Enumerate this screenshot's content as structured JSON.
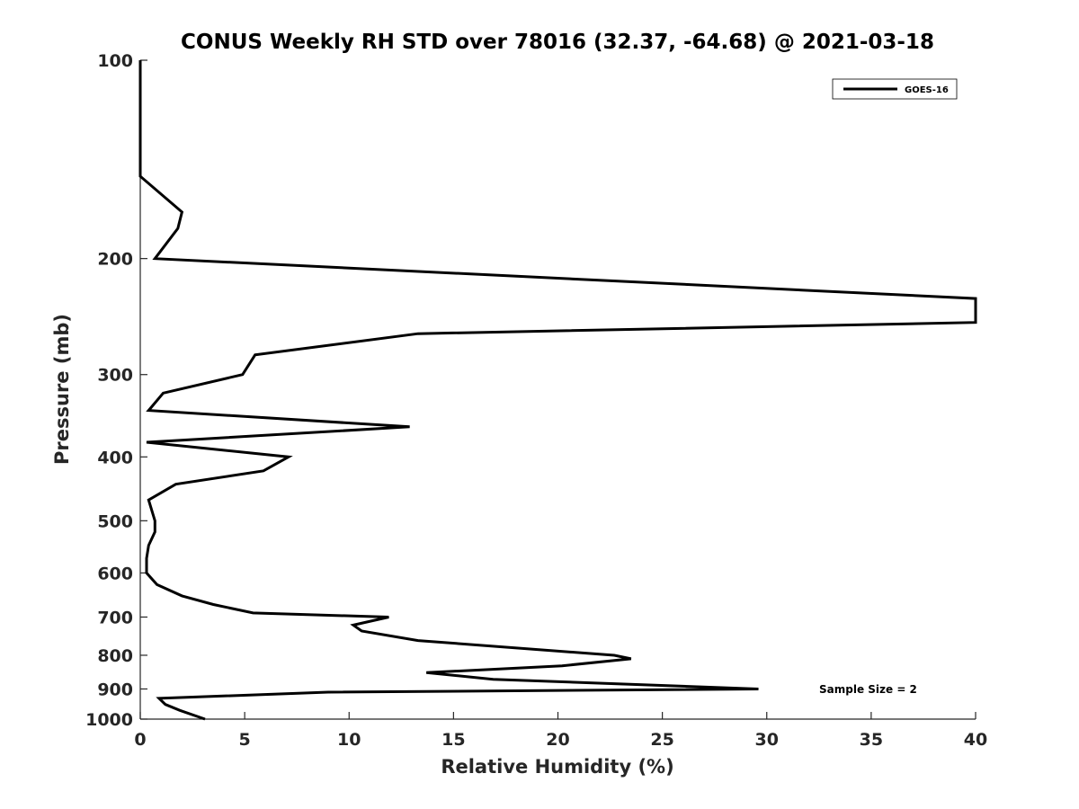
{
  "chart_data": {
    "type": "line",
    "title": "CONUS Weekly RH STD over 78016 (32.37, -64.68) @ 2021-03-18",
    "xlabel": "Relative Humidity (%)",
    "ylabel": "Pressure (mb)",
    "xlim": [
      0,
      40
    ],
    "ylim": [
      100,
      1000
    ],
    "yscale": "log",
    "y_reversed": true,
    "grid": false,
    "legend_position": "top-right",
    "x_ticks": [
      "0",
      "5",
      "10",
      "15",
      "20",
      "25",
      "30",
      "35",
      "40"
    ],
    "y_ticks": [
      "100",
      "200",
      "300",
      "400",
      "500",
      "600",
      "700",
      "800",
      "900",
      "1000"
    ],
    "series": [
      {
        "name": "GOES-16",
        "color": "#000000",
        "points": [
          [
            0.0,
            100
          ],
          [
            0.0,
            125
          ],
          [
            0.0,
            150
          ],
          [
            2.0,
            170
          ],
          [
            1.8,
            180
          ],
          [
            0.7,
            200
          ],
          [
            40.0,
            230
          ],
          [
            40.0,
            250
          ],
          [
            13.3,
            260
          ],
          [
            5.5,
            280
          ],
          [
            4.9,
            300
          ],
          [
            1.1,
            320
          ],
          [
            0.4,
            340
          ],
          [
            12.9,
            360
          ],
          [
            0.3,
            380
          ],
          [
            7.1,
            400
          ],
          [
            5.9,
            420
          ],
          [
            1.7,
            440
          ],
          [
            0.4,
            465
          ],
          [
            0.7,
            500
          ],
          [
            0.7,
            520
          ],
          [
            0.4,
            545
          ],
          [
            0.3,
            570
          ],
          [
            0.3,
            600
          ],
          [
            0.8,
            625
          ],
          [
            2.0,
            650
          ],
          [
            3.5,
            670
          ],
          [
            5.4,
            690
          ],
          [
            11.9,
            700
          ],
          [
            10.2,
            720
          ],
          [
            10.6,
            735
          ],
          [
            13.3,
            760
          ],
          [
            22.7,
            800
          ],
          [
            23.5,
            810
          ],
          [
            20.2,
            830
          ],
          [
            13.7,
            850
          ],
          [
            16.9,
            870
          ],
          [
            29.6,
            900
          ],
          [
            9.0,
            910
          ],
          [
            0.9,
            930
          ],
          [
            1.2,
            950
          ],
          [
            1.9,
            970
          ],
          [
            3.1,
            1000
          ]
        ]
      }
    ],
    "annotation": "Sample Size = 2"
  }
}
